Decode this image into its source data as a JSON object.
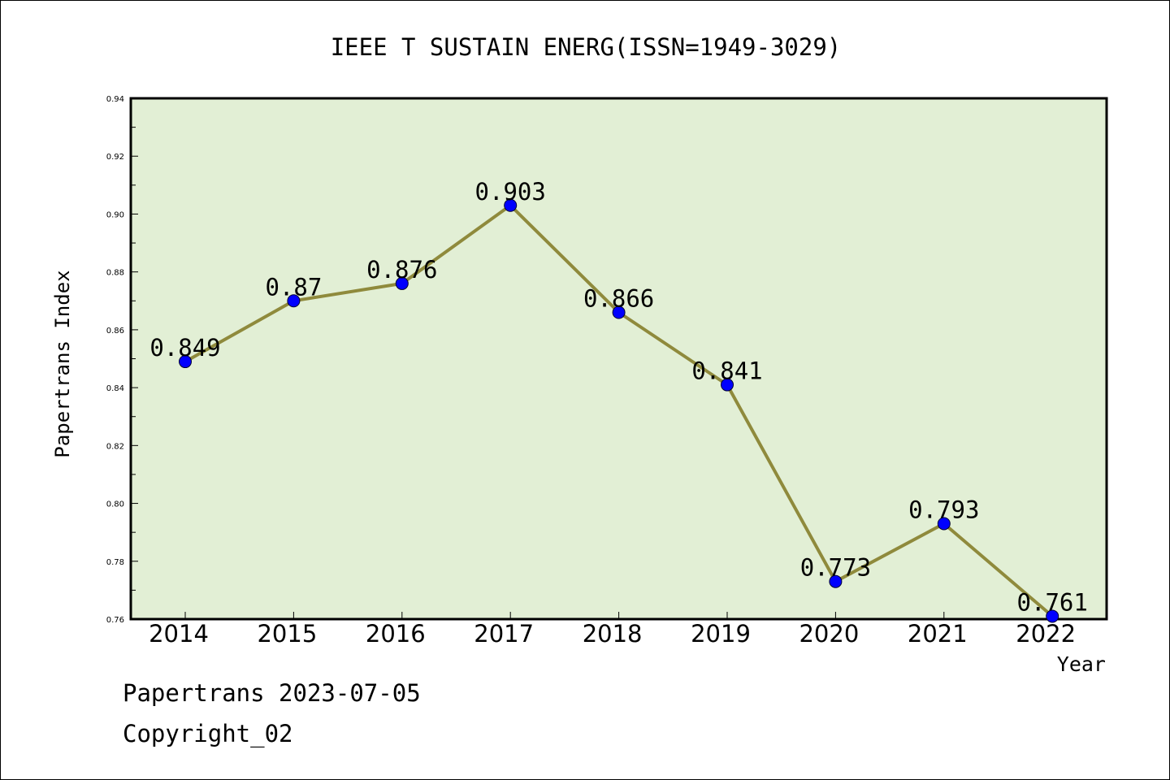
{
  "chart_data": {
    "type": "line",
    "title": "IEEE T SUSTAIN ENERG(ISSN=1949-3029)",
    "xlabel": "Year",
    "ylabel": "Papertrans Index",
    "categories": [
      "2014",
      "2015",
      "2016",
      "2017",
      "2018",
      "2019",
      "2020",
      "2021",
      "2022"
    ],
    "series": [
      {
        "values": [
          0.849,
          0.87,
          0.876,
          0.903,
          0.866,
          0.841,
          0.773,
          0.793,
          0.761
        ],
        "labels": [
          "0.849",
          "0.87",
          "0.876",
          "0.903",
          "0.866",
          "0.841",
          "0.773",
          "0.793",
          "0.761"
        ]
      }
    ],
    "ylim": [
      0.76,
      0.94
    ],
    "yticks": [
      "0.76",
      "0.78",
      "0.80",
      "0.82",
      "0.84",
      "0.86",
      "0.88",
      "0.90",
      "0.92",
      "0.94"
    ],
    "grid": false,
    "colors": {
      "plot_background": "#e2efd5",
      "line": "#8f8a3c",
      "marker": "#0000ff"
    }
  },
  "footer": {
    "line1": "Papertrans 2023-07-05",
    "line2": "Copyright_02"
  }
}
